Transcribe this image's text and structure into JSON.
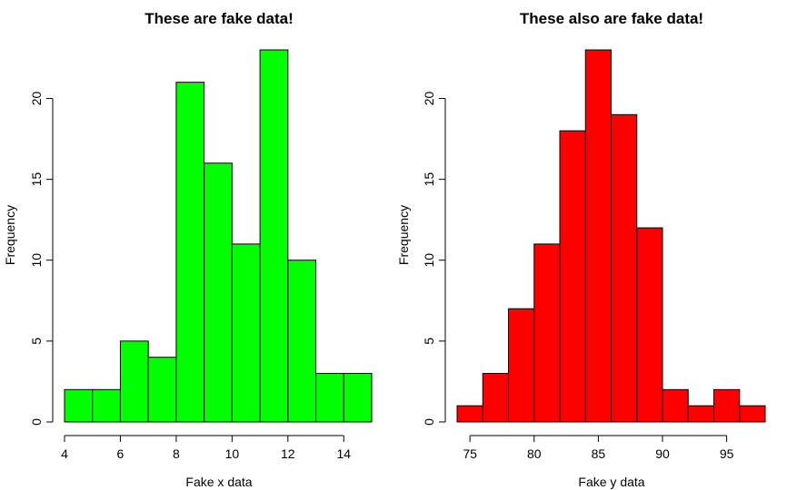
{
  "chart_data": [
    {
      "type": "bar",
      "title": "These are fake data!",
      "xlabel": "Fake x data",
      "ylabel": "Frequency",
      "color": "#00ff00",
      "bin_edges": [
        4,
        5,
        6,
        7,
        8,
        9,
        10,
        11,
        12,
        13,
        14,
        15
      ],
      "values": [
        2,
        2,
        5,
        4,
        21,
        16,
        11,
        23,
        10,
        3,
        3
      ],
      "xlim": [
        4,
        15
      ],
      "ylim": [
        0,
        23
      ],
      "xticks": [
        4,
        6,
        8,
        10,
        12,
        14
      ],
      "yticks": [
        0,
        5,
        10,
        15,
        20
      ],
      "grid": false
    },
    {
      "type": "bar",
      "title": "These also are fake data!",
      "xlabel": "Fake y data",
      "ylabel": "Frequency",
      "color": "#ff0000",
      "bin_edges": [
        74,
        76,
        78,
        80,
        82,
        84,
        86,
        88,
        90,
        92,
        94,
        96,
        98
      ],
      "values": [
        1,
        3,
        7,
        11,
        18,
        23,
        19,
        12,
        2,
        1,
        2,
        1
      ],
      "xlim": [
        74,
        98
      ],
      "ylim": [
        0,
        23
      ],
      "xticks": [
        75,
        80,
        85,
        90,
        95
      ],
      "yticks": [
        0,
        5,
        10,
        15,
        20
      ],
      "grid": false
    }
  ]
}
